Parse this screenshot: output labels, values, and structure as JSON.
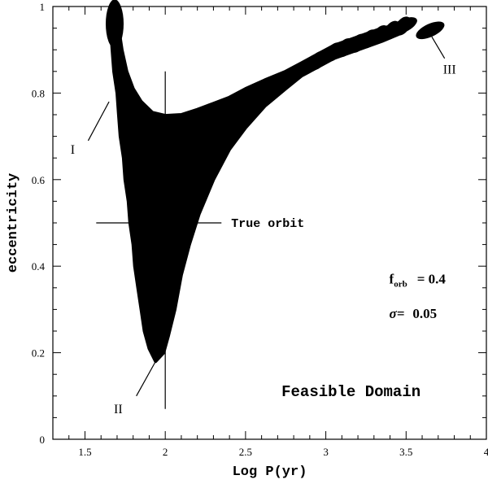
{
  "chart_data": {
    "type": "scatter",
    "xlabel": "Log P(yr)",
    "ylabel": "eccentricity",
    "xlim": [
      1.3,
      4.0
    ],
    "ylim": [
      0,
      1
    ],
    "xticks": [
      "1.5",
      "2",
      "2.5",
      "3",
      "3.5",
      "4"
    ],
    "yticks": [
      "0",
      "0.2",
      "0.4",
      "0.6",
      "0.8",
      "1"
    ],
    "true_orbit": {
      "logP": 2.0,
      "e": 0.5,
      "label": "True orbit"
    },
    "region_label": "Feasible Domain",
    "region_labels": [
      {
        "text": "I",
        "x": 1.65,
        "y": 0.78
      },
      {
        "text": "II",
        "x": 1.94,
        "y": 0.18
      },
      {
        "text": "III",
        "x": 3.63,
        "y": 0.92
      }
    ],
    "f_orb": {
      "symbol": "f",
      "subscript": "orb",
      "value": "= 0.4"
    },
    "sigma": {
      "symbol": "σ=",
      "value": "0.05"
    },
    "domain": {
      "left_edge": [
        [
          1.66,
          1.0
        ],
        [
          1.66,
          0.95
        ],
        [
          1.67,
          0.9
        ],
        [
          1.68,
          0.85
        ],
        [
          1.7,
          0.8
        ],
        [
          1.71,
          0.75
        ],
        [
          1.72,
          0.7
        ],
        [
          1.74,
          0.65
        ],
        [
          1.75,
          0.6
        ],
        [
          1.77,
          0.55
        ],
        [
          1.78,
          0.5
        ],
        [
          1.8,
          0.45
        ],
        [
          1.81,
          0.4
        ],
        [
          1.83,
          0.35
        ],
        [
          1.85,
          0.3
        ],
        [
          1.87,
          0.25
        ],
        [
          1.9,
          0.21
        ],
        [
          1.94,
          0.18
        ]
      ],
      "bottom_right_edge": [
        [
          1.94,
          0.18
        ],
        [
          1.99,
          0.2
        ],
        [
          2.02,
          0.24
        ],
        [
          2.06,
          0.3
        ],
        [
          2.1,
          0.38
        ],
        [
          2.15,
          0.45
        ],
        [
          2.21,
          0.52
        ],
        [
          2.3,
          0.6
        ],
        [
          2.4,
          0.67
        ],
        [
          2.5,
          0.72
        ],
        [
          2.62,
          0.77
        ],
        [
          2.75,
          0.81
        ],
        [
          2.85,
          0.84
        ],
        [
          2.95,
          0.86
        ],
        [
          3.05,
          0.88
        ],
        [
          3.2,
          0.9
        ],
        [
          3.35,
          0.92
        ],
        [
          3.48,
          0.94
        ]
      ],
      "top_edge": [
        [
          3.48,
          0.96
        ],
        [
          3.35,
          0.95
        ],
        [
          3.2,
          0.93
        ],
        [
          3.05,
          0.91
        ],
        [
          2.95,
          0.89
        ],
        [
          2.85,
          0.87
        ],
        [
          2.75,
          0.85
        ],
        [
          2.62,
          0.83
        ],
        [
          2.5,
          0.81
        ],
        [
          2.4,
          0.79
        ],
        [
          2.3,
          0.776
        ],
        [
          2.2,
          0.762
        ],
        [
          2.1,
          0.75
        ],
        [
          2.0,
          0.748
        ],
        [
          1.92,
          0.755
        ],
        [
          1.85,
          0.78
        ],
        [
          1.8,
          0.81
        ],
        [
          1.76,
          0.85
        ],
        [
          1.73,
          0.9
        ],
        [
          1.71,
          0.95
        ],
        [
          1.7,
          1.0
        ]
      ],
      "isolated_blobs": [
        {
          "x": 3.34,
          "y": 0.935
        },
        {
          "x": 3.48,
          "y": 0.955
        },
        {
          "x": 3.65,
          "y": 0.945
        }
      ]
    }
  }
}
